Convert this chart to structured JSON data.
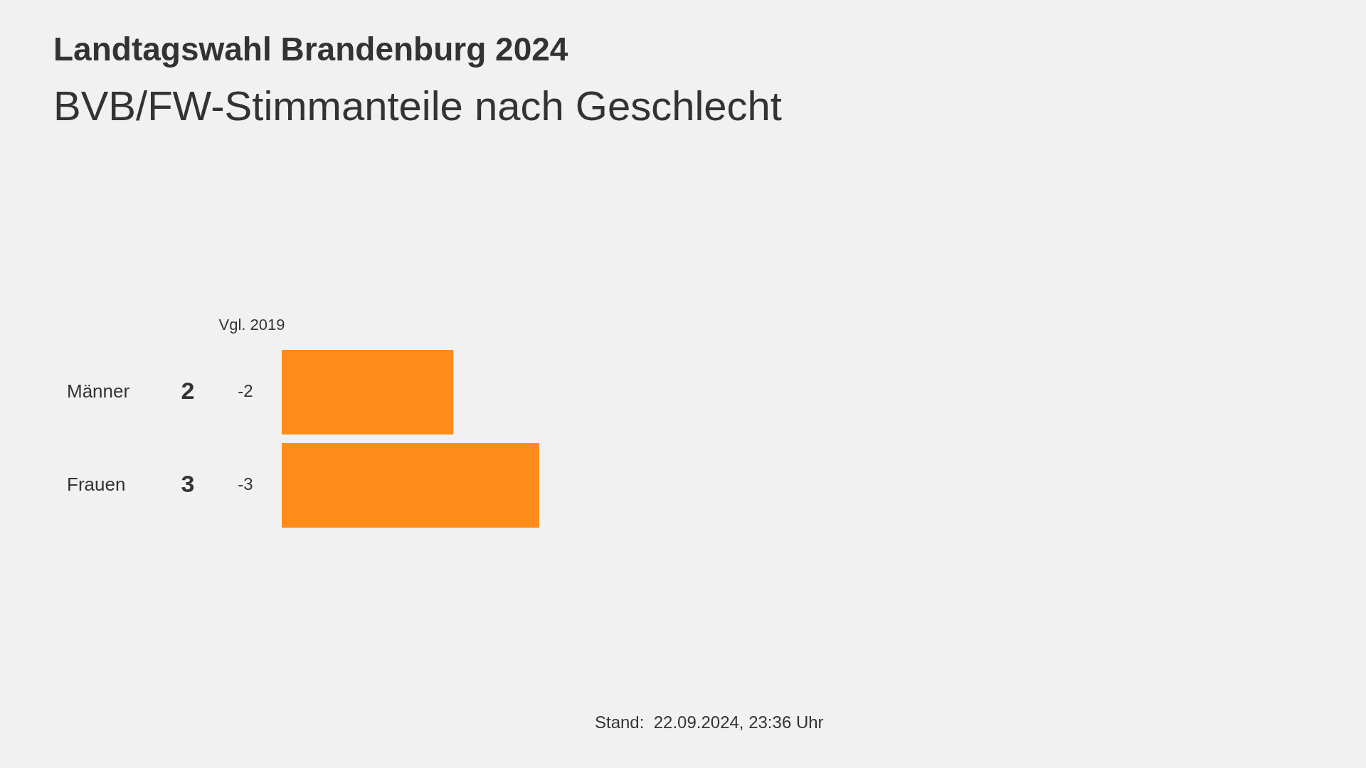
{
  "chart_data": {
    "type": "bar",
    "orientation": "horizontal",
    "title": "Landtagswahl Brandenburg 2024",
    "subtitle": "BVB/FW-Stimmanteile nach Geschlecht",
    "categories": [
      "Männer",
      "Frauen"
    ],
    "values": [
      2,
      3
    ],
    "color": "#ff8c1a",
    "data_labels": true,
    "tick_labels": false,
    "legend": false,
    "annotations": [
      "Vgl. 2019",
      "-2",
      "-3",
      "Stand:  22.09.2024, 23:36 Uhr"
    ]
  }
}
